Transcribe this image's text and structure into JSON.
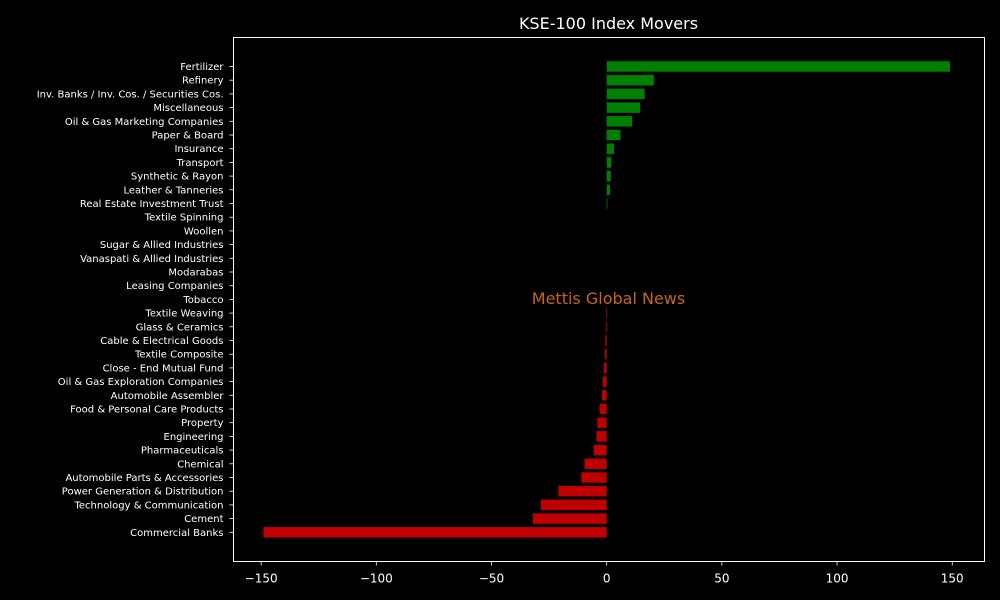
{
  "chart_data": {
    "type": "bar",
    "orientation": "horizontal",
    "title": "KSE-100 Index Movers",
    "xlabel": "",
    "ylabel": "",
    "xlim": [
      -162,
      164
    ],
    "xticks": [
      -150,
      -100,
      -50,
      0,
      50,
      100,
      150
    ],
    "xtick_labels": [
      "−150",
      "−100",
      "−50",
      "0",
      "50",
      "100",
      "150"
    ],
    "grid": false,
    "positive_color": "#008000",
    "negative_color": "#c00000",
    "background_color": "#000000",
    "annotation": "Mettis Global News",
    "categories": [
      "Fertilizer",
      "Refinery",
      "Inv. Banks / Inv. Cos. / Securities Cos.",
      "Miscellaneous",
      "Oil & Gas Marketing Companies",
      "Paper & Board",
      "Insurance",
      "Transport",
      "Synthetic & Rayon",
      "Leather & Tanneries",
      "Real Estate Investment Trust",
      "Textile Spinning",
      "Woollen",
      "Sugar & Allied Industries",
      "Vanaspati & Allied Industries",
      "Modarabas",
      "Leasing Companies",
      "Tobacco",
      "Textile Weaving",
      "Glass & Ceramics",
      "Cable & Electrical Goods",
      "Textile Composite",
      "Close - End Mutual Fund",
      "Oil & Gas Exploration Companies",
      "Automobile Assembler",
      "Food & Personal Care Products",
      "Property",
      "Engineering",
      "Pharmaceuticals",
      "Chemical",
      "Automobile Parts & Accessories",
      "Power Generation & Distribution",
      "Technology & Communication",
      "Cement",
      "Commercial Banks"
    ],
    "values": [
      149,
      20.5,
      16.5,
      14.5,
      11,
      6,
      3.2,
      2,
      1.8,
      1.4,
      0.3,
      0,
      0,
      0,
      0,
      0,
      0,
      -0.1,
      -0.3,
      -0.4,
      -0.6,
      -0.8,
      -1.2,
      -1.6,
      -2,
      -3,
      -4,
      -4.4,
      -5.6,
      -9.6,
      -11,
      -21,
      -28.5,
      -32,
      -149
    ]
  }
}
